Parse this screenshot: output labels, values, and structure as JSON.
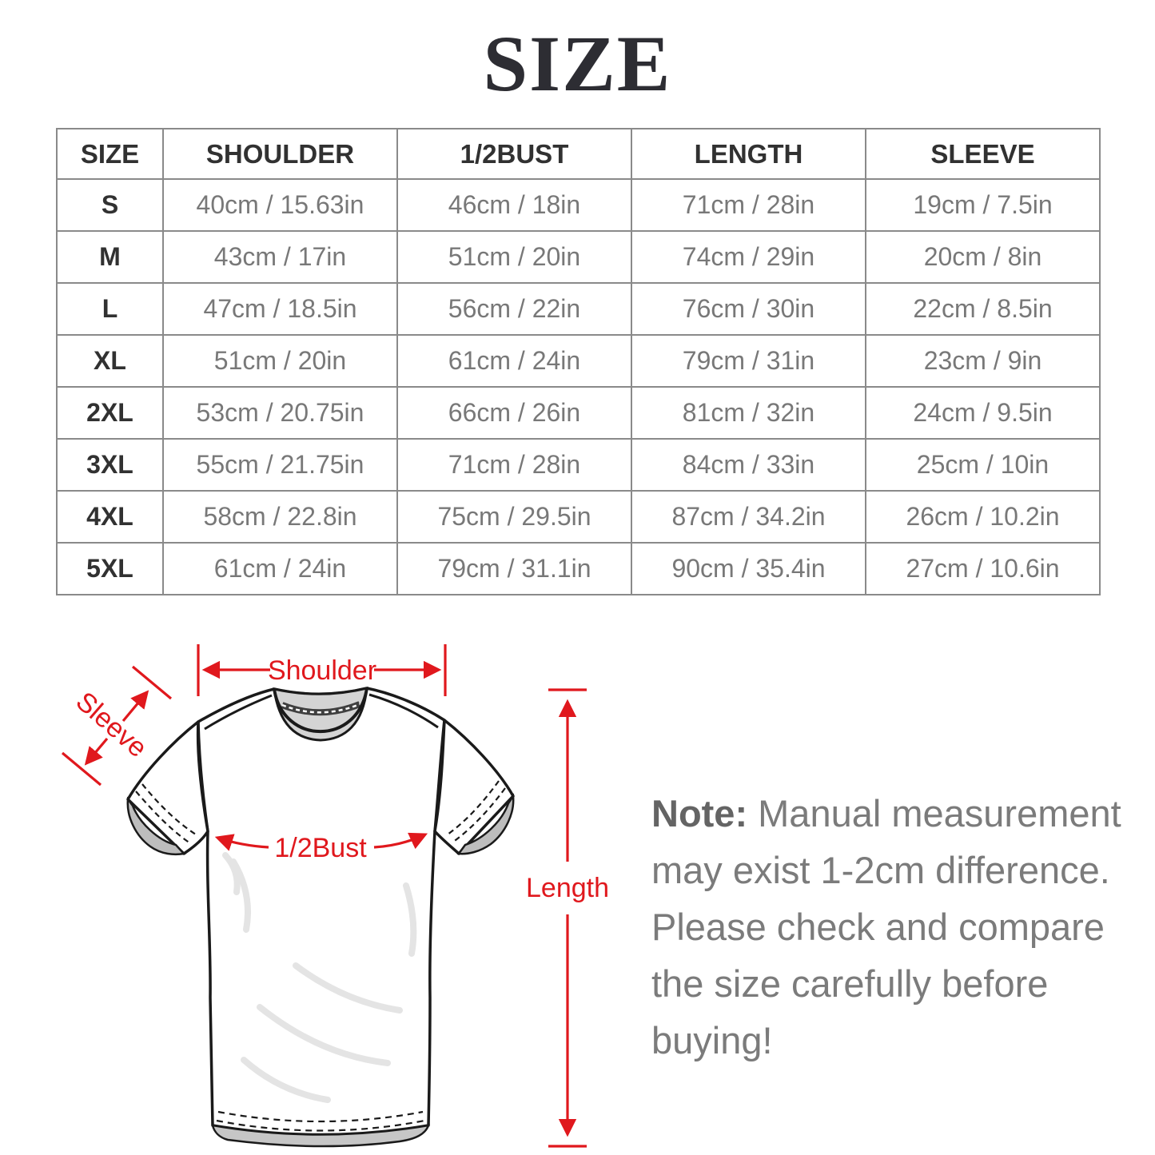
{
  "title": "SIZE",
  "table": {
    "headers": [
      "SIZE",
      "SHOULDER",
      "1/2BUST",
      "LENGTH",
      "SLEEVE"
    ],
    "rows": [
      [
        "S",
        "40cm / 15.63in",
        "46cm / 18in",
        "71cm / 28in",
        "19cm / 7.5in"
      ],
      [
        "M",
        "43cm / 17in",
        "51cm / 20in",
        "74cm / 29in",
        "20cm / 8in"
      ],
      [
        "L",
        "47cm / 18.5in",
        "56cm / 22in",
        "76cm / 30in",
        "22cm / 8.5in"
      ],
      [
        "XL",
        "51cm / 20in",
        "61cm / 24in",
        "79cm / 31in",
        "23cm / 9in"
      ],
      [
        "2XL",
        "53cm / 20.75in",
        "66cm / 26in",
        "81cm / 32in",
        "24cm / 9.5in"
      ],
      [
        "3XL",
        "55cm / 21.75in",
        "71cm / 28in",
        "84cm / 33in",
        "25cm / 10in"
      ],
      [
        "4XL",
        "58cm / 22.8in",
        "75cm / 29.5in",
        "87cm / 34.2in",
        "26cm / 10.2in"
      ],
      [
        "5XL",
        "61cm / 24in",
        "79cm / 31.1in",
        "90cm / 35.4in",
        "27cm / 10.6in"
      ]
    ]
  },
  "diagram": {
    "labels": {
      "shoulder": "Shoulder",
      "sleeve": "Sleeve",
      "bust": "1/2Bust",
      "length": "Length"
    },
    "accent_color": "#e0181d"
  },
  "note": {
    "label": "Note:",
    "text": " Manual measurement may exist 1-2cm difference. Please check and compare the size carefully before buying!"
  }
}
